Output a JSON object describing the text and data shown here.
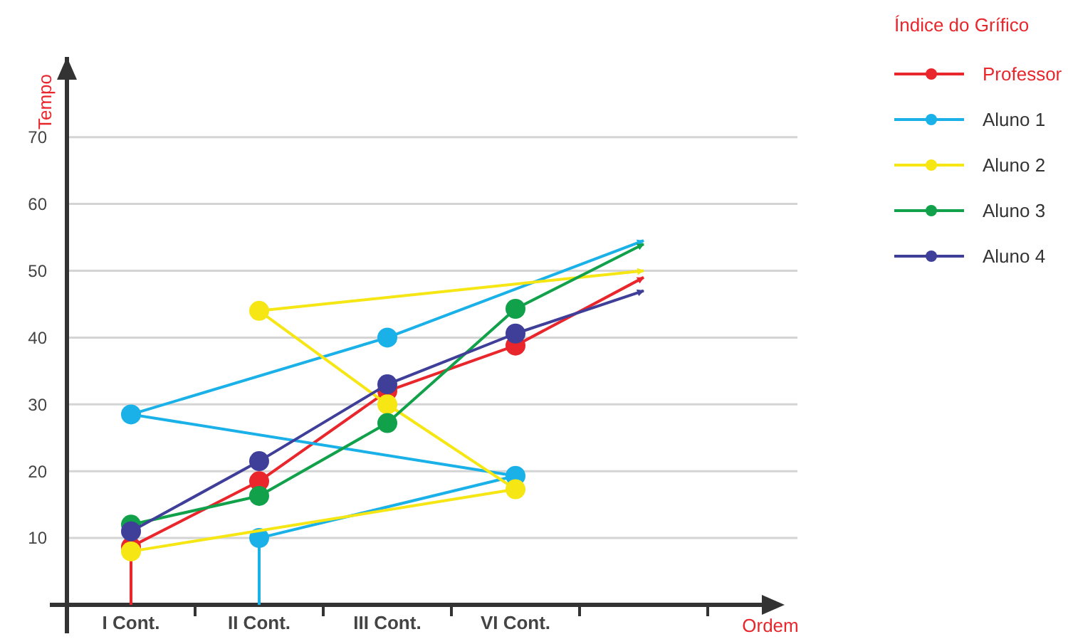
{
  "chart_data": {
    "type": "line",
    "xlabel": "Ordem",
    "ylabel": "Tempo",
    "legend_title": "Índice  do Grífico",
    "legend": "top right",
    "marker": "circle",
    "line_style": "solid",
    "grid": "y",
    "categories": [
      "I Cont.",
      "II Cont.",
      "III Cont.",
      "VI Cont.",
      null
    ],
    "ylim": [
      0,
      82
    ],
    "yticks": [
      10,
      20,
      30,
      40,
      50,
      60,
      70
    ],
    "series": [
      {
        "name": "Professor",
        "color": "#e8262c",
        "x": [
          "I Cont.",
          "I Cont.",
          "II Cont.",
          "III Cont.",
          "VI Cont.",
          null
        ],
        "values": [
          0,
          8.7,
          18.5,
          32,
          38.8,
          49
        ]
      },
      {
        "name": "Aluno 1",
        "color": "#1ab0e8",
        "x": [
          "II Cont.",
          "II Cont.",
          "VI Cont.",
          "I Cont.",
          "III Cont.",
          null
        ],
        "values": [
          0,
          10,
          19.3,
          28.5,
          40,
          54.5
        ]
      },
      {
        "name": "Aluno 2",
        "color": "#f5e614",
        "x": [
          "I Cont.",
          "VI Cont.",
          "III Cont.",
          "II Cont.",
          null
        ],
        "values": [
          8,
          17.3,
          30,
          44,
          50
        ]
      },
      {
        "name": "Aluno 3",
        "color": "#12a14b",
        "x": [
          "I Cont.",
          "II Cont.",
          "III Cont.",
          "VI Cont.",
          null
        ],
        "values": [
          12,
          16.3,
          27.2,
          44.3,
          54
        ]
      },
      {
        "name": "Aluno 4",
        "color": "#3f3f9a",
        "x": [
          "I Cont.",
          "II Cont.",
          "III Cont.",
          "VI Cont.",
          null
        ],
        "values": [
          11,
          21.5,
          33,
          40.6,
          47
        ]
      }
    ]
  }
}
